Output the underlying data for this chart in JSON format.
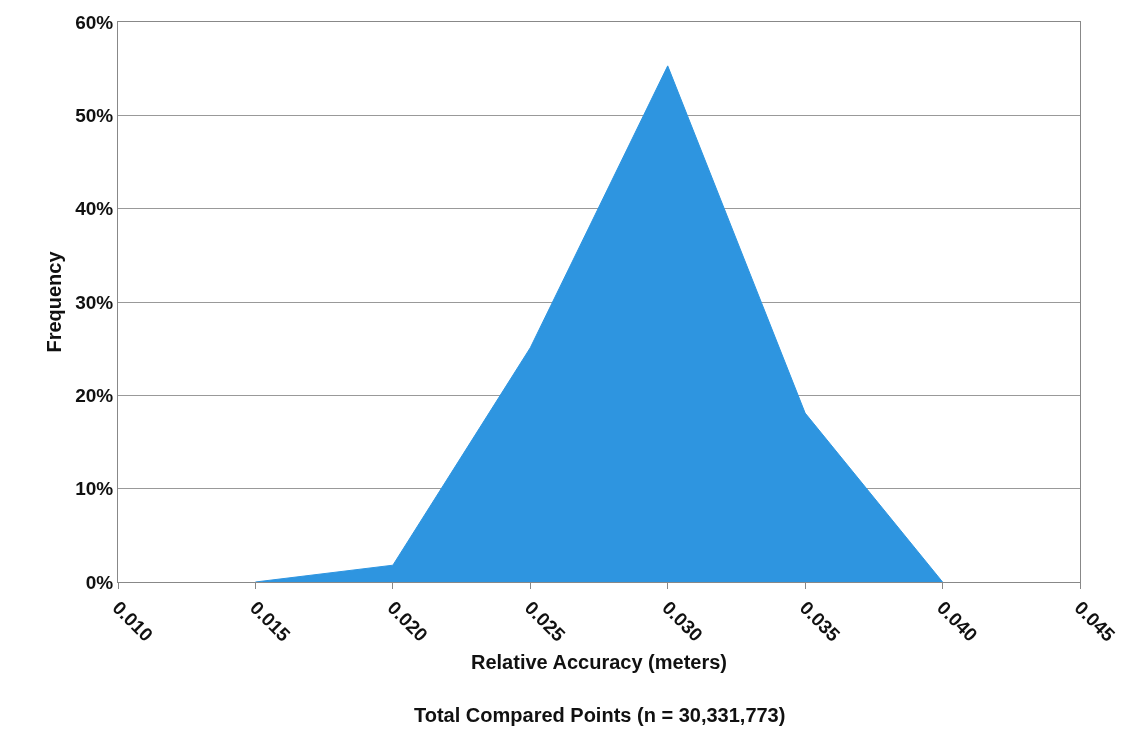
{
  "chart_data": {
    "type": "area",
    "xlabel": "Relative Accuracy (meters)",
    "ylabel": "Frequency",
    "annotations": [
      "Total Compared Points (n = 30,331,773)"
    ],
    "x": [
      0.015,
      0.02,
      0.025,
      0.03,
      0.035,
      0.04
    ],
    "series": [
      {
        "color": "#2e95e0",
        "values": [
          0,
          1.8,
          25.1,
          55.3,
          18.1,
          0
        ]
      }
    ],
    "xlim": [
      0.01,
      0.045
    ],
    "xticks": [
      {
        "value": 0.01,
        "label": "0.010"
      },
      {
        "value": 0.015,
        "label": "0.015"
      },
      {
        "value": 0.02,
        "label": "0.020"
      },
      {
        "value": 0.025,
        "label": "0.025"
      },
      {
        "value": 0.03,
        "label": "0.030"
      },
      {
        "value": 0.035,
        "label": "0.035"
      },
      {
        "value": 0.04,
        "label": "0.040"
      },
      {
        "value": 0.045,
        "label": "0.045"
      }
    ],
    "ylim": [
      0,
      60
    ],
    "yticks": [
      {
        "value": 0,
        "label": "0%"
      },
      {
        "value": 10,
        "label": "10%"
      },
      {
        "value": 20,
        "label": "20%"
      },
      {
        "value": 30,
        "label": "30%"
      },
      {
        "value": 40,
        "label": "40%"
      },
      {
        "value": 50,
        "label": "50%"
      },
      {
        "value": 60,
        "label": "60%"
      }
    ],
    "grid": "y"
  }
}
